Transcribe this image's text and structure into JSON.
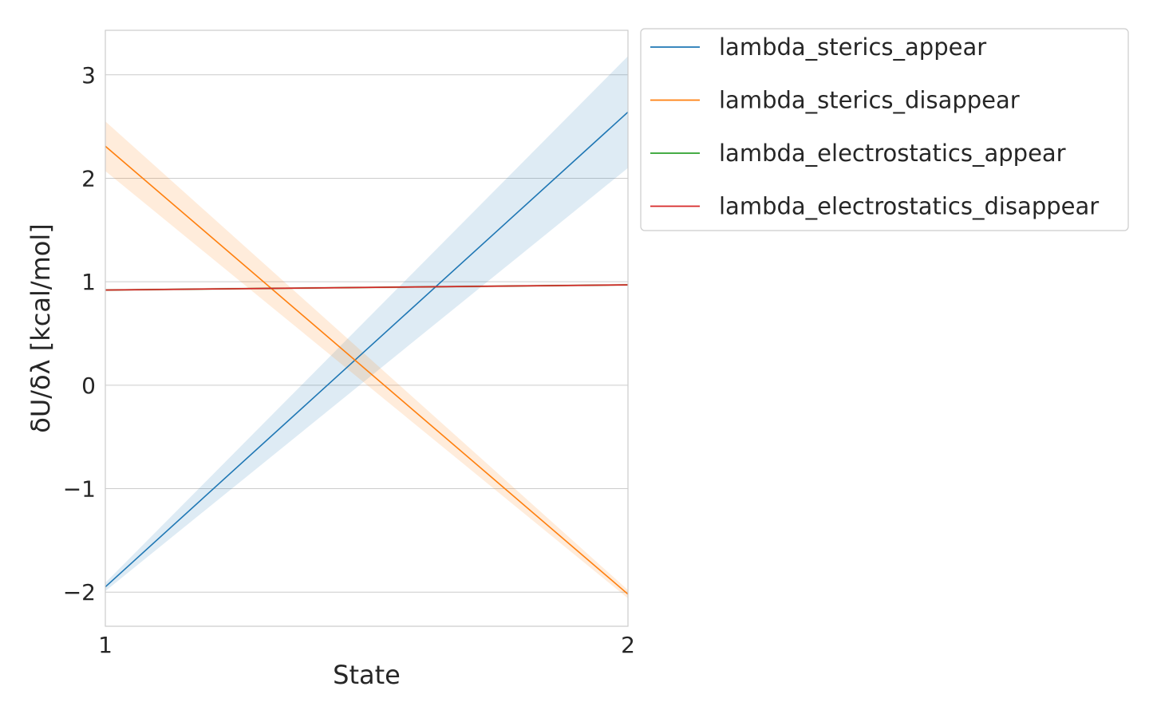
{
  "chart_data": {
    "type": "line",
    "title": "",
    "xlabel": "State",
    "ylabel": "δU/δλ [kcal/mol]",
    "x": [
      1,
      2
    ],
    "xticks": [
      "1",
      "2"
    ],
    "xlim": [
      1,
      2
    ],
    "ylim": [
      -2.33,
      3.43
    ],
    "yticks": [
      3,
      2,
      1,
      0,
      -1,
      -2
    ],
    "ytick_labels": [
      "3",
      "2",
      "1",
      "0",
      "−1",
      "−2"
    ],
    "grid": true,
    "legend_position": "outside-right-top",
    "series": [
      {
        "name": "lambda_sterics_appear",
        "color": "#1f77b4",
        "values": [
          -1.95,
          2.64
        ],
        "lower": [
          -1.99,
          2.1
        ],
        "upper": [
          -1.91,
          3.18
        ]
      },
      {
        "name": "lambda_sterics_disappear",
        "color": "#ff7f0e",
        "values": [
          2.31,
          -2.02
        ],
        "lower": [
          2.07,
          -2.06
        ],
        "upper": [
          2.55,
          -1.98
        ]
      },
      {
        "name": "lambda_electrostatics_appear",
        "color": "#2ca02c",
        "values": [
          0.92,
          0.97
        ],
        "lower": [
          0.91,
          0.96
        ],
        "upper": [
          0.93,
          0.98
        ]
      },
      {
        "name": "lambda_electrostatics_disappear",
        "color": "#d62728",
        "values": [
          0.92,
          0.97
        ],
        "lower": [
          0.91,
          0.96
        ],
        "upper": [
          0.93,
          0.98
        ]
      }
    ]
  }
}
